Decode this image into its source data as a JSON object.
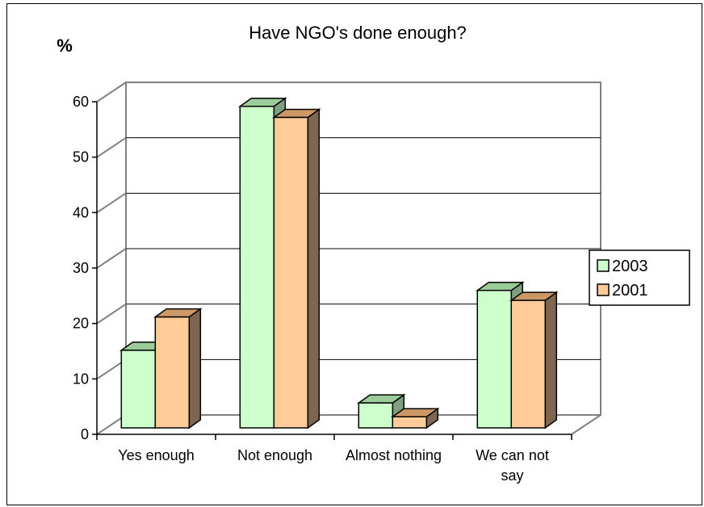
{
  "chart_data": {
    "type": "bar",
    "title": "Have NGO's done enough?",
    "ylabel": "%",
    "xlabel": "",
    "categories": [
      [
        "Yes enough"
      ],
      [
        "Not enough"
      ],
      [
        "Almost nothing"
      ],
      [
        "We can not",
        "say"
      ]
    ],
    "series": [
      {
        "name": "2003",
        "values": [
          14,
          58,
          4.5,
          24.8
        ],
        "color": "#ccffcc",
        "side_color": "#7f9f7f",
        "top_color": "#99cc99"
      },
      {
        "name": "2001",
        "values": [
          20,
          56,
          2,
          23
        ],
        "color": "#ffcc99",
        "side_color": "#7f6650",
        "top_color": "#cc9966"
      }
    ],
    "ylim": [
      0,
      60
    ],
    "yticks": [
      "0",
      "10",
      "20",
      "30",
      "40",
      "50",
      "60"
    ],
    "grid": true,
    "legend_position": "right"
  }
}
